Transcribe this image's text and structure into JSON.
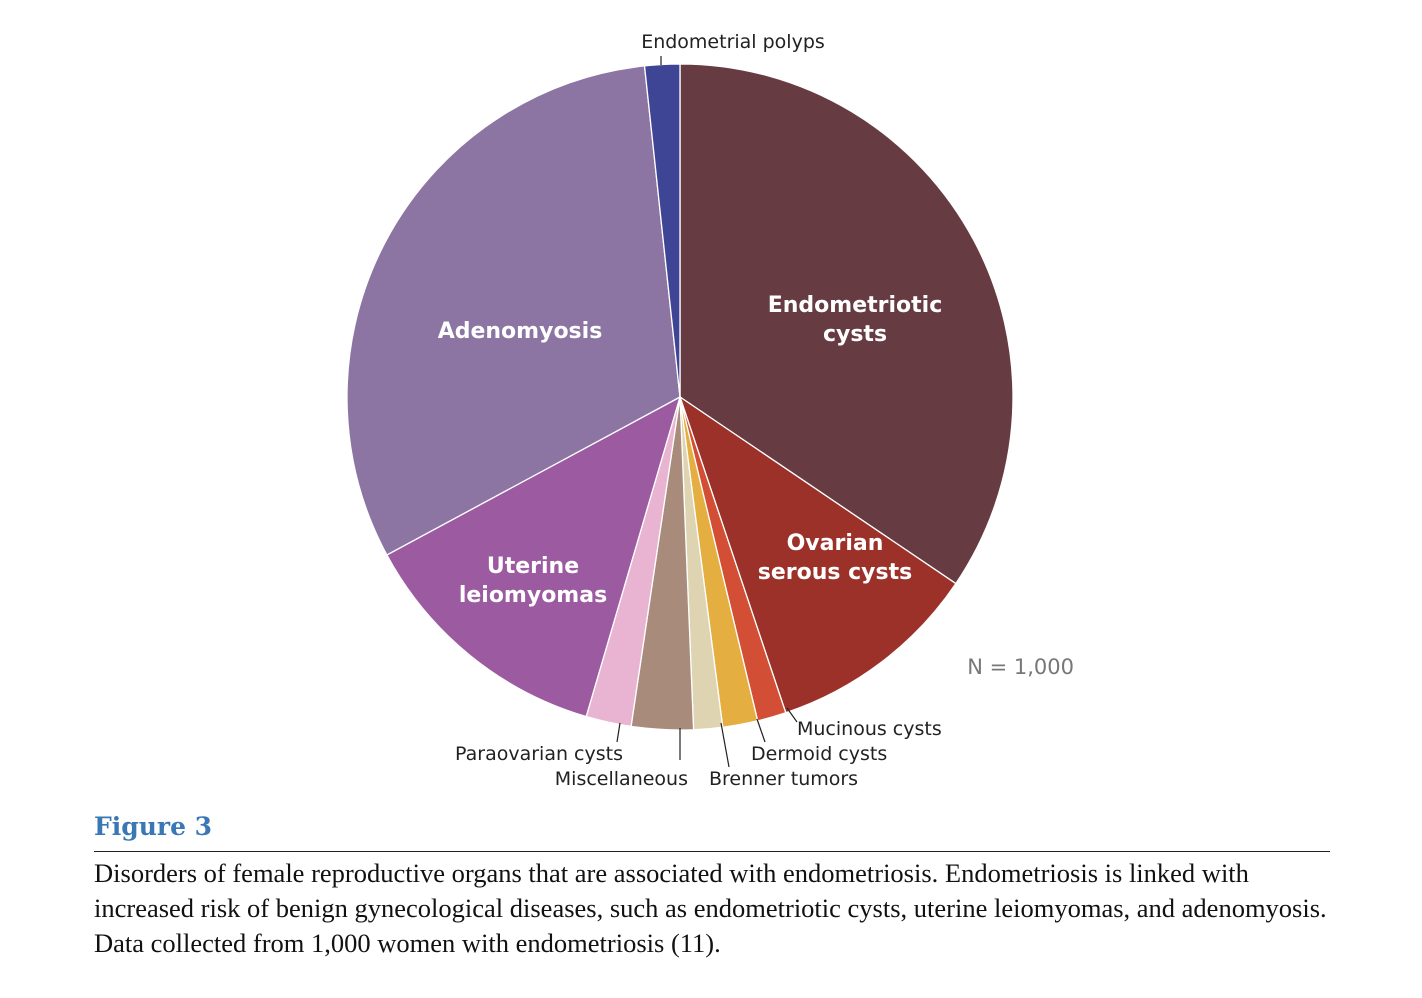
{
  "chart_data": {
    "type": "pie",
    "title": "",
    "note": "N = 1,000",
    "slices": [
      {
        "label": "Endometriotic cysts",
        "value": 34.5,
        "color": "#663b42"
      },
      {
        "label": "Ovarian serous cysts",
        "value": 10.4,
        "color": "#9b3129"
      },
      {
        "label": "Mucinous cysts",
        "value": 1.4,
        "color": "#d24e34"
      },
      {
        "label": "Dermoid cysts",
        "value": 1.7,
        "color": "#e5ae40"
      },
      {
        "label": "Brenner tumors",
        "value": 1.4,
        "color": "#ded4b1"
      },
      {
        "label": "Miscellaneous",
        "value": 3.0,
        "color": "#a98b7c"
      },
      {
        "label": "Paraovarian cysts",
        "value": 2.2,
        "color": "#e8b4d2"
      },
      {
        "label": "Uterine leiomyomas",
        "value": 12.6,
        "color": "#9c5ba1"
      },
      {
        "label": "Adenomyosis",
        "value": 31.2,
        "color": "#8c74a3"
      },
      {
        "label": "Endometrial polyps",
        "value": 1.7,
        "color": "#3f4595"
      }
    ]
  },
  "figure": {
    "label": "Figure 3",
    "caption": "Disorders of female reproductive organs that are associated with endometriosis. Endometriosis is linked with increased risk of benign gynecological diseases, such as endometriotic cysts, uterine leiomyomas, and adenomyosis. Data collected from 1,000 women with endometriosis (11)."
  }
}
